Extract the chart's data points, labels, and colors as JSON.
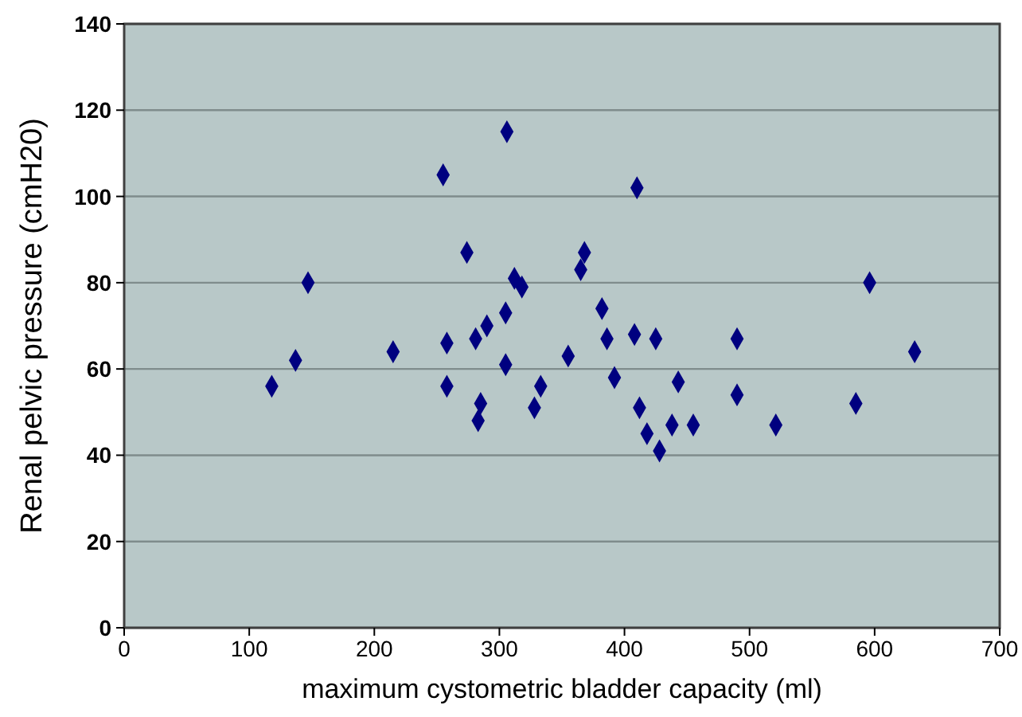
{
  "chart_data": {
    "type": "scatter",
    "xlabel": "maximum cystometric bladder capacity (ml)",
    "ylabel": "Renal pelvic pressure (cmH20)",
    "xlim": [
      0,
      700
    ],
    "xticks": [
      0,
      100,
      200,
      300,
      400,
      500,
      600,
      700
    ],
    "ylim": [
      0,
      140
    ],
    "yticks": [
      0,
      20,
      40,
      60,
      80,
      100,
      120,
      140
    ],
    "grid": "y",
    "marker": "diamond",
    "series": [
      {
        "color": "#000080",
        "x": [
          118,
          137,
          147,
          215,
          255,
          258,
          258,
          274,
          281,
          283,
          285,
          290,
          305,
          305,
          306,
          312,
          318,
          328,
          333,
          355,
          365,
          368,
          382,
          386,
          392,
          408,
          410,
          412,
          418,
          425,
          428,
          438,
          443,
          455,
          490,
          490,
          521,
          585,
          596,
          632
        ],
        "values": [
          56,
          62,
          80,
          64,
          105,
          66,
          56,
          87,
          67,
          48,
          52,
          70,
          73,
          61,
          115,
          81,
          79,
          51,
          56,
          63,
          83,
          87,
          74,
          67,
          58,
          68,
          102,
          51,
          45,
          67,
          41,
          47,
          57,
          47,
          67,
          54,
          47,
          52,
          80,
          64
        ]
      }
    ]
  }
}
